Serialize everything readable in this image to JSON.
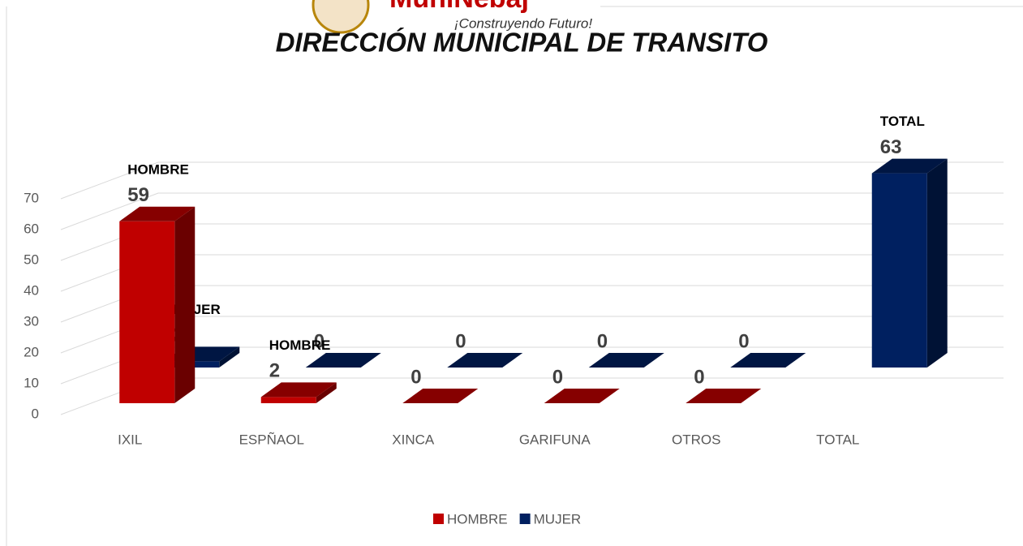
{
  "chart_data": {
    "type": "bar3d",
    "logo_text": "MuniNebaj",
    "logo_tagline": "¡Construyendo Futuro!",
    "title": "DIRECCIÓN MUNICIPAL DE TRANSITO",
    "categories": [
      "IXIL",
      "ESPÑAOL",
      "XINCA",
      "GARIFUNA",
      "OTROS",
      "TOTAL"
    ],
    "series": [
      {
        "name": "HOMBRE",
        "color": "#c00000",
        "values": [
          59,
          2,
          0,
          0,
          0,
          null
        ],
        "point_labels": [
          "HOMBRE",
          "HOMBRE",
          null,
          null,
          null,
          null
        ]
      },
      {
        "name": "MUJER",
        "color": "#002060",
        "values": [
          2,
          0,
          0,
          0,
          0,
          63
        ],
        "point_labels": [
          "MUJER",
          null,
          null,
          null,
          null,
          "TOTAL"
        ]
      }
    ],
    "ylim": [
      0,
      70
    ],
    "yticks": [
      0,
      10,
      20,
      30,
      40,
      50,
      60,
      70
    ],
    "grid": true,
    "legend": "bottom"
  }
}
